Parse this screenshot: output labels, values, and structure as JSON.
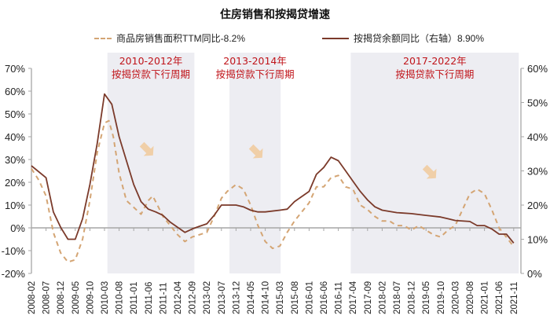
{
  "chart_data": {
    "type": "line",
    "title": "住房销售和按揭贷增速",
    "xlabel": "",
    "ylabel": "",
    "ylabel_right": "",
    "x": [
      "2008-02",
      "2008-07",
      "2008-12",
      "2009-05",
      "2009-10",
      "2010-03",
      "2010-08",
      "2011-01",
      "2011-06",
      "2011-11",
      "2012-04",
      "2012-09",
      "2013-02",
      "2013-07",
      "2013-12",
      "2014-05",
      "2014-10",
      "2015-03",
      "2015-08",
      "2016-01",
      "2016-06",
      "2016-11",
      "2017-04",
      "2017-09",
      "2018-02",
      "2018-07",
      "2018-12",
      "2019-05",
      "2019-10",
      "2020-03",
      "2020-08",
      "2021-01",
      "2021-06",
      "2021-11"
    ],
    "y_left": {
      "min": -20,
      "max": 70,
      "step": 10,
      "ticks": [
        "-20%",
        "-10%",
        "0%",
        "10%",
        "20%",
        "30%",
        "40%",
        "50%",
        "60%",
        "70%"
      ]
    },
    "y_right": {
      "min": 0,
      "max": 60,
      "step": 10,
      "ticks": [
        "0%",
        "10%",
        "20%",
        "30%",
        "40%",
        "50%",
        "60%"
      ]
    },
    "series": [
      {
        "name": "商品房销售面积TTM同比",
        "legend": "商品房销售面积TTM同比-8.2%",
        "latest": "-8.2%",
        "axis": "left",
        "style": "dashed",
        "color": "#d4a574",
        "points": [
          [
            0,
            26
          ],
          [
            0.5,
            21
          ],
          [
            1,
            14
          ],
          [
            1.5,
            -2
          ],
          [
            2,
            -11
          ],
          [
            2.5,
            -15
          ],
          [
            3,
            -14
          ],
          [
            3.5,
            -5
          ],
          [
            4,
            12
          ],
          [
            4.5,
            33
          ],
          [
            5,
            46
          ],
          [
            5.3,
            47
          ],
          [
            5.6,
            40
          ],
          [
            6,
            24
          ],
          [
            6.5,
            12
          ],
          [
            7,
            9
          ],
          [
            7.5,
            6
          ],
          [
            8,
            12
          ],
          [
            8.3,
            14
          ],
          [
            8.7,
            9
          ],
          [
            9,
            5
          ],
          [
            9.5,
            1
          ],
          [
            10,
            -3
          ],
          [
            10.5,
            -6
          ],
          [
            11,
            -4
          ],
          [
            11.5,
            -3
          ],
          [
            12,
            -2
          ],
          [
            12.5,
            5
          ],
          [
            13,
            13
          ],
          [
            13.4,
            16
          ],
          [
            14,
            19
          ],
          [
            14.5,
            17
          ],
          [
            15,
            10
          ],
          [
            15.5,
            1
          ],
          [
            16,
            -6
          ],
          [
            16.5,
            -9
          ],
          [
            17,
            -8
          ],
          [
            17.5,
            -2
          ],
          [
            18,
            3
          ],
          [
            18.5,
            7
          ],
          [
            19,
            11
          ],
          [
            19.5,
            18
          ],
          [
            20,
            18
          ],
          [
            20.5,
            22
          ],
          [
            21,
            23
          ],
          [
            21.5,
            18
          ],
          [
            22,
            17
          ],
          [
            22.5,
            10
          ],
          [
            23,
            8
          ],
          [
            23.5,
            5
          ],
          [
            24,
            3
          ],
          [
            24.5,
            3
          ],
          [
            25,
            1
          ],
          [
            25.5,
            1
          ],
          [
            26,
            -1
          ],
          [
            26.5,
            1
          ],
          [
            27,
            -1
          ],
          [
            27.5,
            -3
          ],
          [
            28,
            -4
          ],
          [
            28.5,
            -1
          ],
          [
            29,
            1
          ],
          [
            29.5,
            8
          ],
          [
            30,
            15
          ],
          [
            30.5,
            17
          ],
          [
            31,
            15
          ],
          [
            31.5,
            8
          ],
          [
            32,
            0
          ],
          [
            33,
            -8.2
          ]
        ]
      },
      {
        "name": "按揭贷余额同比（右轴）",
        "legend": "按揭贷余额同比（右轴）8.90%",
        "latest": "8.90%",
        "axis": "right",
        "style": "solid",
        "color": "#7b3a2a",
        "points": [
          [
            0,
            31.5
          ],
          [
            1,
            28
          ],
          [
            1.5,
            18
          ],
          [
            2,
            13.5
          ],
          [
            2.5,
            10
          ],
          [
            3,
            10
          ],
          [
            3.5,
            16
          ],
          [
            4,
            26
          ],
          [
            4.5,
            38
          ],
          [
            5,
            52.5
          ],
          [
            5.5,
            49.5
          ],
          [
            6,
            40
          ],
          [
            6.5,
            33
          ],
          [
            7,
            26
          ],
          [
            7.5,
            21
          ],
          [
            8,
            18.8
          ],
          [
            8.5,
            18
          ],
          [
            9,
            17
          ],
          [
            9.5,
            15
          ],
          [
            10,
            13.5
          ],
          [
            10.5,
            12
          ],
          [
            11,
            13
          ],
          [
            11.5,
            13.8
          ],
          [
            12,
            14.5
          ],
          [
            12.5,
            17
          ],
          [
            13,
            20
          ],
          [
            13.5,
            20
          ],
          [
            14,
            20
          ],
          [
            14.5,
            19.5
          ],
          [
            15,
            18.5
          ],
          [
            15.5,
            18
          ],
          [
            16,
            18
          ],
          [
            17,
            18.5
          ],
          [
            17.5,
            18.8
          ],
          [
            18,
            21
          ],
          [
            18.5,
            22.5
          ],
          [
            19,
            24
          ],
          [
            19.5,
            29
          ],
          [
            20,
            31
          ],
          [
            20.5,
            34
          ],
          [
            21,
            33
          ],
          [
            21.5,
            30
          ],
          [
            22,
            27
          ],
          [
            22.5,
            24
          ],
          [
            23,
            21.5
          ],
          [
            23.5,
            19.5
          ],
          [
            24,
            18.5
          ],
          [
            25,
            17.8
          ],
          [
            26,
            17.5
          ],
          [
            27,
            17
          ],
          [
            28,
            16.5
          ],
          [
            28.5,
            16
          ],
          [
            29,
            15.5
          ],
          [
            30,
            15.2
          ],
          [
            30.5,
            14
          ],
          [
            31,
            14
          ],
          [
            31.5,
            13
          ],
          [
            32,
            11.5
          ],
          [
            32.5,
            11.5
          ],
          [
            33,
            8.9
          ]
        ]
      }
    ],
    "shaded_periods": [
      {
        "label_line1": "2010-2012年",
        "label_line2": "按揭贷款下行周期",
        "x_start_index": 5.2,
        "x_end_index": 11.15
      },
      {
        "label_line1": "2013-2014年",
        "label_line2": "按揭贷款下行周期",
        "x_start_index": 13.55,
        "x_end_index": 17.05
      },
      {
        "label_line1": "2017-2022年",
        "label_line2": "按揭贷款下行周期",
        "x_start_index": 21.85,
        "x_end_index": 33.35
      }
    ],
    "annotations": [
      "down-arrow-2010-2012",
      "down-arrow-2013-2014",
      "down-arrow-2017-2022"
    ],
    "legend_position": "top",
    "grid": false
  },
  "colors": {
    "dashed_series": "#d4a574",
    "solid_series": "#7b3a2a",
    "shade": "#ededf2",
    "period_label": "#c0141a",
    "axis": "#a6a6a6",
    "arrow": "#f0cfa8"
  }
}
